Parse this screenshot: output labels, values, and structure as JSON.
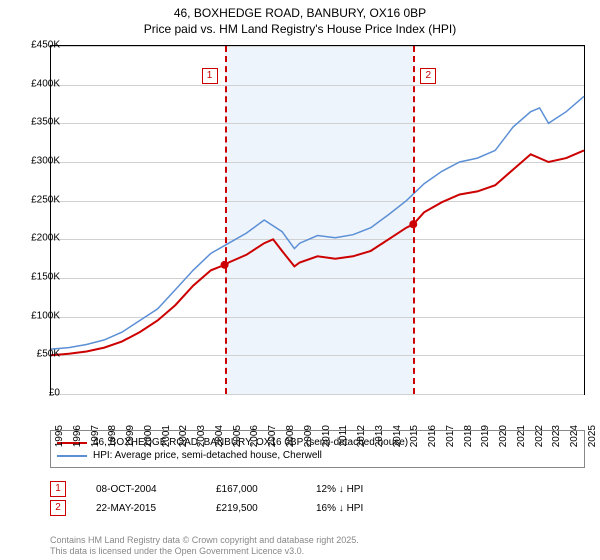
{
  "title_line1": "46, BOXHEDGE ROAD, BANBURY, OX16 0BP",
  "title_line2": "Price paid vs. HM Land Registry's House Price Index (HPI)",
  "chart": {
    "type": "line",
    "xlim": [
      1995,
      2025
    ],
    "ylim": [
      0,
      450000
    ],
    "ytick_step": 50000,
    "yticks_labels": [
      "£0",
      "£50K",
      "£100K",
      "£150K",
      "£200K",
      "£250K",
      "£300K",
      "£350K",
      "£400K",
      "£450K"
    ],
    "xticks": [
      1995,
      1996,
      1997,
      1998,
      1999,
      2000,
      2001,
      2002,
      2003,
      2004,
      2005,
      2006,
      2007,
      2008,
      2009,
      2010,
      2011,
      2012,
      2013,
      2014,
      2015,
      2016,
      2017,
      2018,
      2019,
      2020,
      2021,
      2022,
      2023,
      2024,
      2025
    ],
    "grid_color": "#d0d0d0",
    "background_color": "#ffffff",
    "band_color": "#eef4fb",
    "band_x": [
      2004.77,
      2015.39
    ],
    "series": [
      {
        "id": "prop",
        "label": "46, BOXHEDGE ROAD, BANBURY, OX16 0BP (semi-detached house)",
        "color": "#cc0000",
        "line_width": 2,
        "data": [
          [
            1995,
            50000
          ],
          [
            1996,
            52000
          ],
          [
            1997,
            55000
          ],
          [
            1998,
            60000
          ],
          [
            1999,
            68000
          ],
          [
            2000,
            80000
          ],
          [
            2001,
            95000
          ],
          [
            2002,
            115000
          ],
          [
            2003,
            140000
          ],
          [
            2004,
            160000
          ],
          [
            2004.77,
            167000
          ],
          [
            2005,
            170000
          ],
          [
            2006,
            180000
          ],
          [
            2007,
            195000
          ],
          [
            2007.5,
            200000
          ],
          [
            2008,
            185000
          ],
          [
            2008.7,
            165000
          ],
          [
            2009,
            170000
          ],
          [
            2010,
            178000
          ],
          [
            2011,
            175000
          ],
          [
            2012,
            178000
          ],
          [
            2013,
            185000
          ],
          [
            2014,
            200000
          ],
          [
            2015,
            215000
          ],
          [
            2015.39,
            219500
          ],
          [
            2016,
            235000
          ],
          [
            2017,
            248000
          ],
          [
            2018,
            258000
          ],
          [
            2019,
            262000
          ],
          [
            2020,
            270000
          ],
          [
            2021,
            290000
          ],
          [
            2022,
            310000
          ],
          [
            2023,
            300000
          ],
          [
            2024,
            305000
          ],
          [
            2025,
            315000
          ]
        ]
      },
      {
        "id": "hpi",
        "label": "HPI: Average price, semi-detached house, Cherwell",
        "color": "#5b8fd6",
        "line_width": 1.5,
        "data": [
          [
            1995,
            58000
          ],
          [
            1996,
            60000
          ],
          [
            1997,
            64000
          ],
          [
            1998,
            70000
          ],
          [
            1999,
            80000
          ],
          [
            2000,
            95000
          ],
          [
            2001,
            110000
          ],
          [
            2002,
            135000
          ],
          [
            2003,
            160000
          ],
          [
            2004,
            182000
          ],
          [
            2005,
            195000
          ],
          [
            2006,
            208000
          ],
          [
            2007,
            225000
          ],
          [
            2008,
            210000
          ],
          [
            2008.7,
            188000
          ],
          [
            2009,
            195000
          ],
          [
            2010,
            205000
          ],
          [
            2011,
            202000
          ],
          [
            2012,
            206000
          ],
          [
            2013,
            215000
          ],
          [
            2014,
            232000
          ],
          [
            2015,
            250000
          ],
          [
            2016,
            272000
          ],
          [
            2017,
            288000
          ],
          [
            2018,
            300000
          ],
          [
            2019,
            305000
          ],
          [
            2020,
            315000
          ],
          [
            2021,
            345000
          ],
          [
            2022,
            365000
          ],
          [
            2022.5,
            370000
          ],
          [
            2023,
            350000
          ],
          [
            2024,
            365000
          ],
          [
            2025,
            385000
          ]
        ]
      }
    ],
    "markers": [
      {
        "x": 2004.77,
        "y": 167000
      },
      {
        "x": 2015.39,
        "y": 219500
      }
    ],
    "annotations": [
      {
        "n": "1",
        "x": 2004.77
      },
      {
        "n": "2",
        "x": 2015.39
      }
    ]
  },
  "legend": {
    "items": [
      {
        "color": "#cc0000",
        "label": "46, BOXHEDGE ROAD, BANBURY, OX16 0BP (semi-detached house)"
      },
      {
        "color": "#5b8fd6",
        "label": "HPI: Average price, semi-detached house, Cherwell"
      }
    ]
  },
  "transactions": [
    {
      "n": "1",
      "date": "08-OCT-2004",
      "price": "£167,000",
      "pct": "12% ↓ HPI"
    },
    {
      "n": "2",
      "date": "22-MAY-2015",
      "price": "£219,500",
      "pct": "16% ↓ HPI"
    }
  ],
  "footer_line1": "Contains HM Land Registry data © Crown copyright and database right 2025.",
  "footer_line2": "This data is licensed under the Open Government Licence v3.0."
}
